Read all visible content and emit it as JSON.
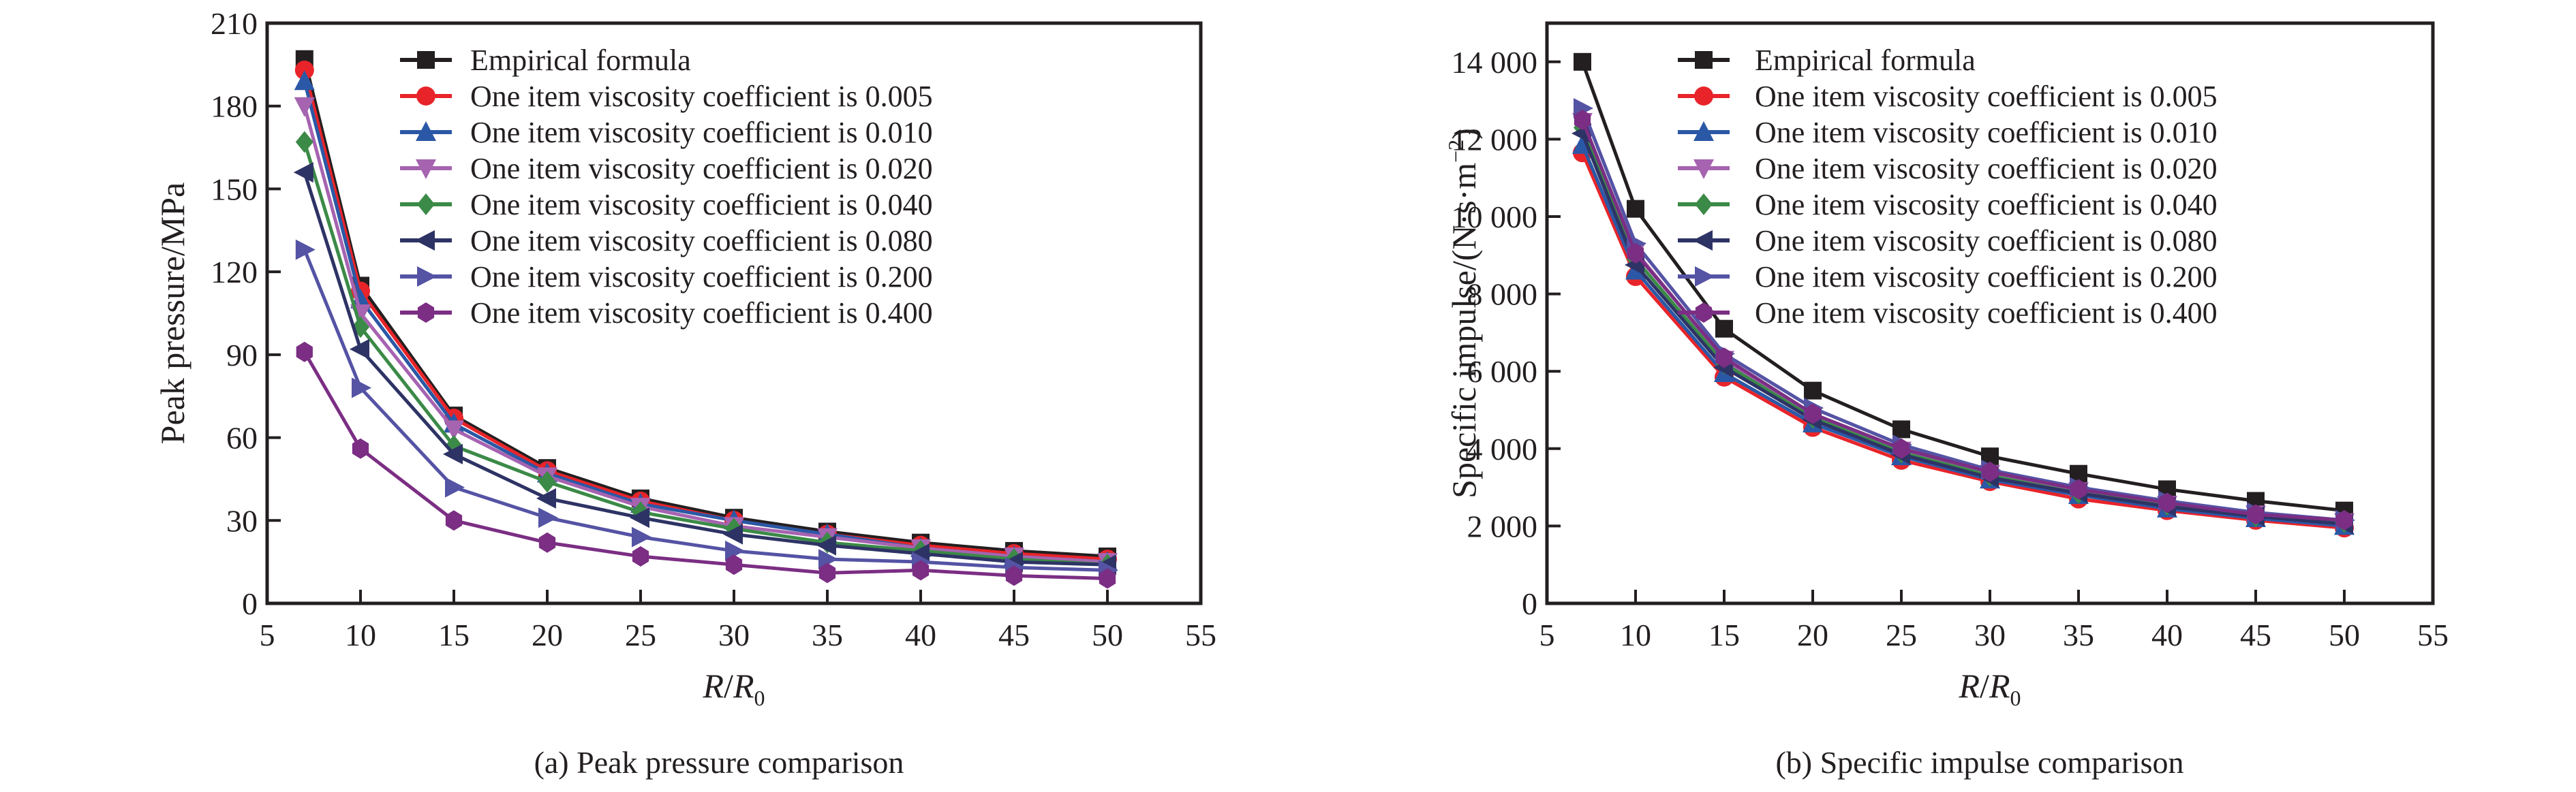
{
  "colors": {
    "axis": "#231f20",
    "series": [
      "#231f20",
      "#e8242a",
      "#2b58a6",
      "#a663b0",
      "#3b8a47",
      "#2e3365",
      "#5453a4",
      "#7b2e83"
    ]
  },
  "markers": [
    "square",
    "circle",
    "triangle-up",
    "triangle-down",
    "diamond",
    "triangle-left",
    "triangle-right",
    "hexagon"
  ],
  "chart_data": [
    {
      "type": "line",
      "caption": "(a) Peak pressure comparison",
      "xlabel": "R/R0",
      "xlabel_parts": {
        "a": "R",
        "slash": "/",
        "b": "R",
        "sub": "0"
      },
      "ylabel": "Peak pressure/MPa",
      "xlim": [
        5,
        55
      ],
      "ylim": [
        0,
        210
      ],
      "xticks": [
        5,
        10,
        15,
        20,
        25,
        30,
        35,
        40,
        45,
        50,
        55
      ],
      "yticks": [
        0,
        30,
        60,
        90,
        120,
        150,
        180,
        210
      ],
      "ytick_labels": [
        "0",
        "30",
        "60",
        "90",
        "120",
        "150",
        "180",
        "210"
      ],
      "legend_position": "top-right",
      "x": [
        7,
        10,
        15,
        20,
        25,
        30,
        35,
        40,
        45,
        50
      ],
      "series": [
        {
          "name": "Empirical formula",
          "values": [
            197,
            115,
            68,
            49,
            38,
            31,
            26,
            22,
            19,
            17
          ]
        },
        {
          "name": "One item viscosity coefficient is 0.005",
          "values": [
            193,
            113,
            67,
            48,
            37,
            30,
            25,
            21,
            18,
            16
          ]
        },
        {
          "name": "One item viscosity coefficient is 0.010",
          "values": [
            189,
            110,
            65,
            47,
            36,
            30,
            25,
            20,
            17,
            15
          ]
        },
        {
          "name": "One item viscosity coefficient is 0.020",
          "values": [
            180,
            105,
            63,
            46,
            35,
            28,
            24,
            20,
            17,
            15
          ]
        },
        {
          "name": "One item viscosity coefficient is 0.040",
          "values": [
            167,
            100,
            57,
            44,
            33,
            27,
            22,
            19,
            16,
            14
          ]
        },
        {
          "name": "One item viscosity coefficient is 0.080",
          "values": [
            156,
            92,
            54,
            38,
            31,
            25,
            21,
            18,
            15,
            14
          ]
        },
        {
          "name": "One item viscosity coefficient is 0.200",
          "values": [
            128,
            78,
            42,
            31,
            24,
            19,
            16,
            15,
            13,
            12
          ]
        },
        {
          "name": "One item viscosity coefficient is 0.400",
          "values": [
            91,
            56,
            30,
            22,
            17,
            14,
            11,
            12,
            10,
            9
          ]
        }
      ]
    },
    {
      "type": "line",
      "caption": "(b) Specific impulse comparison",
      "xlabel": "R/R0",
      "xlabel_parts": {
        "a": "R",
        "slash": "/",
        "b": "R",
        "sub": "0"
      },
      "ylabel": "Specific impulse/(N·s·m−2)",
      "ylabel_parts": {
        "main": "Specific impulse/(N·s·m",
        "sup": "−2",
        "close": ")"
      },
      "xlim": [
        5,
        55
      ],
      "ylim": [
        0,
        15000
      ],
      "xticks": [
        5,
        10,
        15,
        20,
        25,
        30,
        35,
        40,
        45,
        50,
        55
      ],
      "yticks": [
        0,
        2000,
        4000,
        6000,
        8000,
        10000,
        12000,
        14000
      ],
      "ytick_labels": [
        "0",
        "2 000",
        "4 000",
        "6 000",
        "8 000",
        "10 000",
        "12 000",
        "14 000"
      ],
      "legend_position": "top-right",
      "x": [
        7,
        10,
        15,
        20,
        25,
        30,
        35,
        40,
        45,
        50
      ],
      "series": [
        {
          "name": "Empirical formula",
          "values": [
            14000,
            10200,
            7100,
            5500,
            4500,
            3800,
            3350,
            2950,
            2650,
            2400
          ]
        },
        {
          "name": "One item viscosity coefficient is 0.005",
          "values": [
            11650,
            8450,
            5850,
            4550,
            3700,
            3150,
            2700,
            2400,
            2150,
            1950
          ]
        },
        {
          "name": "One item viscosity coefficient is 0.010",
          "values": [
            11850,
            8600,
            5950,
            4650,
            3800,
            3200,
            2800,
            2450,
            2200,
            2000
          ]
        },
        {
          "name": "One item viscosity coefficient is 0.020",
          "values": [
            12450,
            9100,
            6300,
            4850,
            3950,
            3350,
            2900,
            2550,
            2300,
            2100
          ]
        },
        {
          "name": "One item viscosity coefficient is 0.040",
          "values": [
            12300,
            8900,
            6200,
            4800,
            3900,
            3300,
            2850,
            2550,
            2250,
            2100
          ]
        },
        {
          "name": "One item viscosity coefficient is 0.080",
          "values": [
            12150,
            8750,
            6100,
            4750,
            3850,
            3250,
            2850,
            2500,
            2250,
            2050
          ]
        },
        {
          "name": "One item viscosity coefficient is 0.200",
          "values": [
            12800,
            9300,
            6450,
            5050,
            4100,
            3450,
            3000,
            2650,
            2350,
            2150
          ]
        },
        {
          "name": "One item viscosity coefficient is 0.400",
          "values": [
            12500,
            9050,
            6350,
            4900,
            4000,
            3400,
            2950,
            2600,
            2300,
            2150
          ]
        }
      ]
    }
  ]
}
